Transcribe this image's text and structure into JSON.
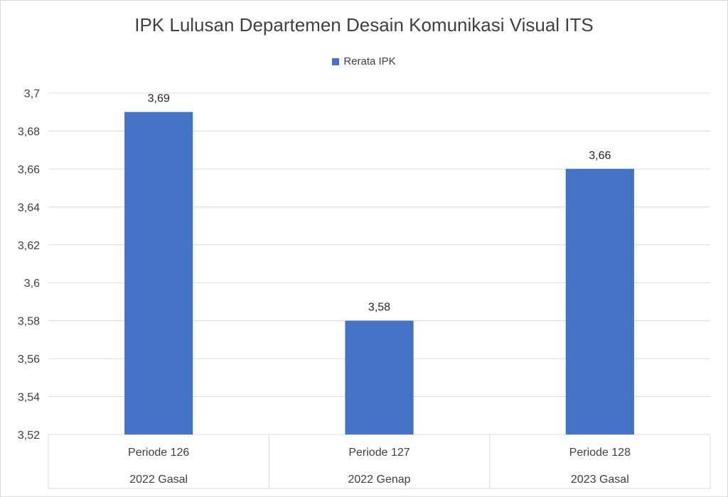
{
  "chart_data": {
    "type": "bar",
    "title": "IPK Lulusan Departemen Desain Komunikasi Visual ITS",
    "categories": [
      [
        "Periode 126",
        "2022 Gasal"
      ],
      [
        "Periode 127",
        "2022 Genap"
      ],
      [
        "Periode 128",
        "2023 Gasal"
      ]
    ],
    "series": [
      {
        "name": "Rerata IPK",
        "values": [
          3.69,
          3.58,
          3.66
        ],
        "color": "#4472c4"
      }
    ],
    "data_labels": [
      "3,69",
      "3,58",
      "3,66"
    ],
    "y_ticks": [
      "3,52",
      "3,54",
      "3,56",
      "3,58",
      "3,6",
      "3,62",
      "3,64",
      "3,66",
      "3,68",
      "3,7"
    ],
    "ylim": [
      3.52,
      3.7
    ],
    "grid": true,
    "legend_position": "top"
  }
}
